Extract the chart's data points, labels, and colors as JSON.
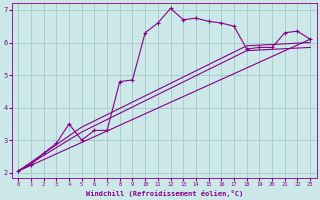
{
  "xlabel": "Windchill (Refroidissement éolien,°C)",
  "bg_color": "#cce8e8",
  "line_color": "#880088",
  "grid_color": "#aacccc",
  "xlim": [
    -0.5,
    23.5
  ],
  "ylim": [
    1.85,
    7.2
  ],
  "xticks": [
    0,
    1,
    2,
    3,
    4,
    5,
    6,
    7,
    8,
    9,
    10,
    11,
    12,
    13,
    14,
    15,
    16,
    17,
    18,
    19,
    20,
    21,
    22,
    23
  ],
  "yticks": [
    2,
    3,
    4,
    5,
    6,
    7
  ],
  "series1_x": [
    0,
    1,
    2,
    3,
    4,
    5,
    6,
    7,
    8,
    9,
    10,
    11,
    12,
    13,
    14,
    15,
    16,
    17,
    18,
    19,
    20,
    21,
    22,
    23
  ],
  "series1_y": [
    2.05,
    2.25,
    2.6,
    2.9,
    3.5,
    3.0,
    3.3,
    3.3,
    4.8,
    4.85,
    6.3,
    6.6,
    7.05,
    6.7,
    6.75,
    6.65,
    6.6,
    6.5,
    5.8,
    5.85,
    5.85,
    6.3,
    6.35,
    6.1
  ],
  "series2_x": [
    0,
    23
  ],
  "series2_y": [
    2.05,
    6.1
  ],
  "series3_x": [
    0,
    5,
    18,
    23
  ],
  "series3_y": [
    2.05,
    3.25,
    5.75,
    5.85
  ],
  "series4_x": [
    0,
    5,
    18,
    23
  ],
  "series4_y": [
    2.05,
    3.4,
    5.9,
    6.0
  ]
}
